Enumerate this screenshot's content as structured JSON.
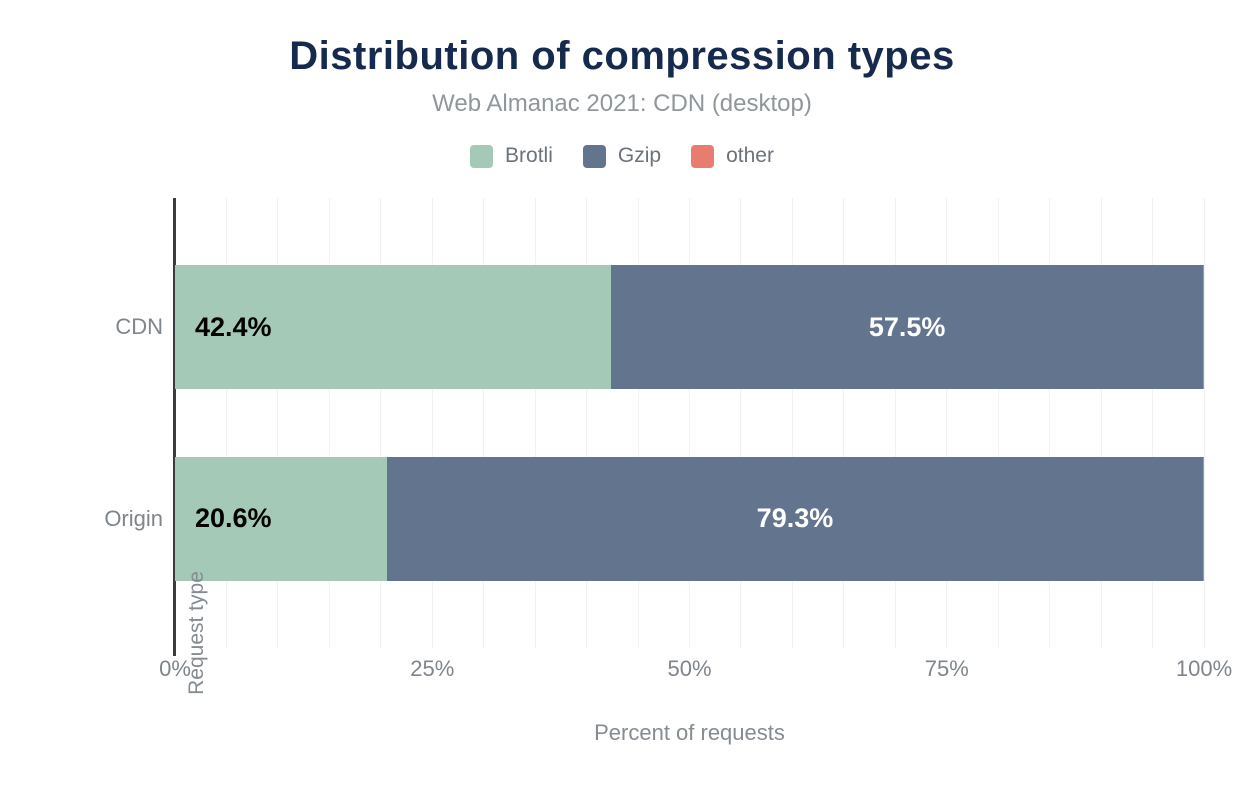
{
  "header": {
    "title": "Distribution of compression types",
    "subtitle": "Web Almanac 2021: CDN (desktop)"
  },
  "axes": {
    "x_title": "Percent of requests",
    "y_title": "Request type"
  },
  "colors": {
    "title_navy": "#152a4d",
    "subtitle_gray": "#8f979c",
    "tick_gray": "#7e868c",
    "axis_line": "#3a3b3d",
    "gridline": "#f1f1f1",
    "brotli_green": "#a4cab7",
    "gzip_slate": "#63748f",
    "other_salmon": "#e87c71"
  },
  "chart_data": {
    "type": "bar",
    "orientation": "horizontal",
    "stacked": true,
    "title": "Distribution of compression types",
    "subtitle": "Web Almanac 2021: CDN (desktop)",
    "xlabel": "Percent of requests",
    "ylabel": "Request type",
    "xlim": [
      0,
      100
    ],
    "x_ticks": [
      {
        "label": "0%",
        "value": 0
      },
      {
        "label": "25%",
        "value": 25
      },
      {
        "label": "50%",
        "value": 50
      },
      {
        "label": "75%",
        "value": 75
      },
      {
        "label": "100%",
        "value": 100
      }
    ],
    "grid": "vertical, minor gridlines every 5%",
    "legend_position": "top",
    "categories": [
      "CDN",
      "Origin"
    ],
    "series": [
      {
        "name": "Brotli",
        "color": "#a4cab7",
        "values": [
          42.4,
          20.6
        ],
        "labels": [
          "42.4%",
          "20.6%"
        ],
        "label_color": "#000000",
        "label_align": "left"
      },
      {
        "name": "Gzip",
        "color": "#63748f",
        "values": [
          57.5,
          79.3
        ],
        "labels": [
          "57.5%",
          "79.3%"
        ],
        "label_color": "#ffffff",
        "label_align": "center"
      },
      {
        "name": "other",
        "color": "#e87c71",
        "values": [
          0.1,
          0.1
        ],
        "labels": [
          null,
          null
        ],
        "label_color": "#000000",
        "label_align": "center"
      }
    ]
  }
}
